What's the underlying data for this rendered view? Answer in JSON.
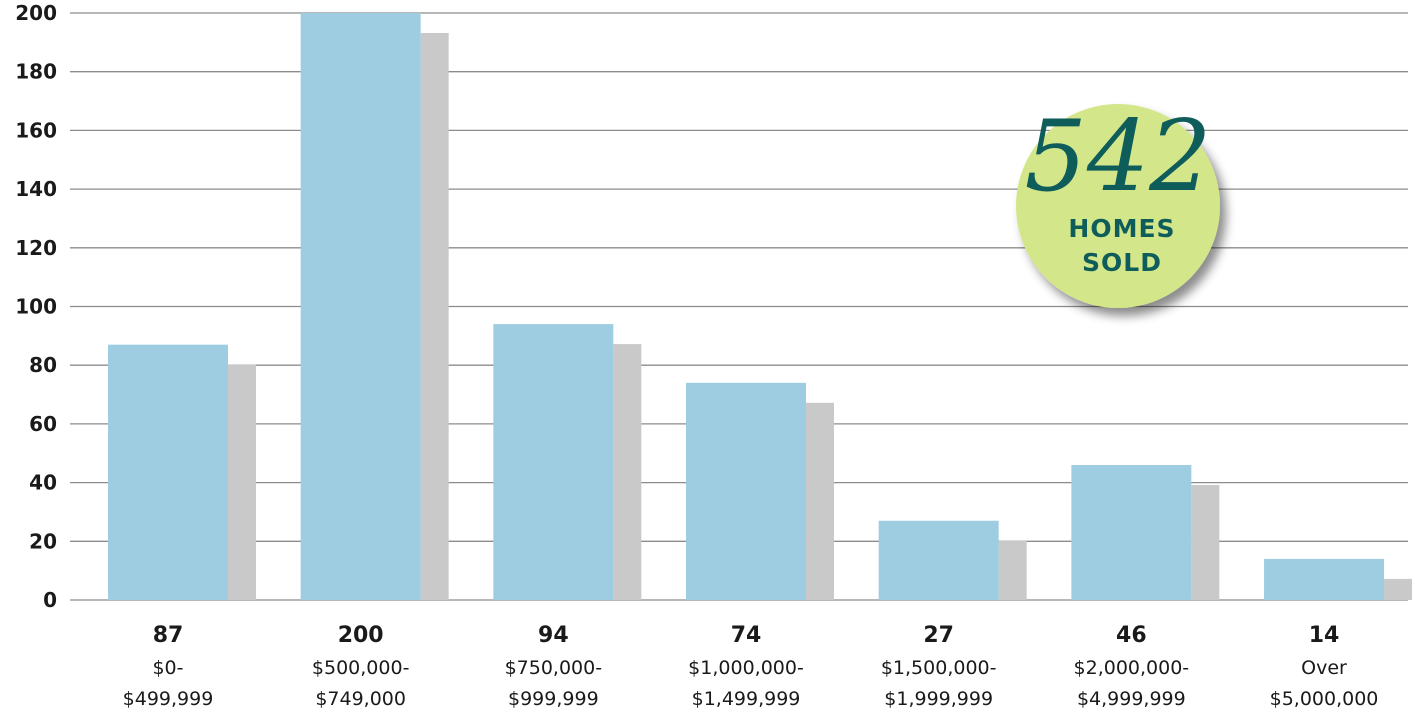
{
  "chart_data": {
    "type": "bar",
    "categories": [
      [
        "$0-",
        "$499,999"
      ],
      [
        "$500,000-",
        "$749,000"
      ],
      [
        "$750,000-",
        "$999,999"
      ],
      [
        "$1,000,000-",
        "$1,499,999"
      ],
      [
        "$1,500,000-",
        "$1,999,999"
      ],
      [
        "$2,000,000-",
        "$4,999,999"
      ],
      [
        "Over",
        "$5,000,000"
      ]
    ],
    "values": [
      87,
      200,
      94,
      74,
      27,
      46,
      14
    ],
    "value_labels": [
      "87",
      "200",
      "94",
      "74",
      "27",
      "46",
      "14"
    ],
    "yticks": [
      0,
      20,
      40,
      60,
      80,
      100,
      120,
      140,
      160,
      180,
      200
    ],
    "ylim": [
      0,
      200
    ],
    "grid": true,
    "title": "",
    "xlabel": "",
    "ylabel": ""
  },
  "badge": {
    "number": "542",
    "line1": "HOMES",
    "line2": "SOLD"
  },
  "colors": {
    "bar": "#9ecde1",
    "shadow": "#c9c9c9",
    "grid": "#8c8c8c",
    "badge_fill": "#d4e68a",
    "badge_text": "#0f5d5a"
  }
}
